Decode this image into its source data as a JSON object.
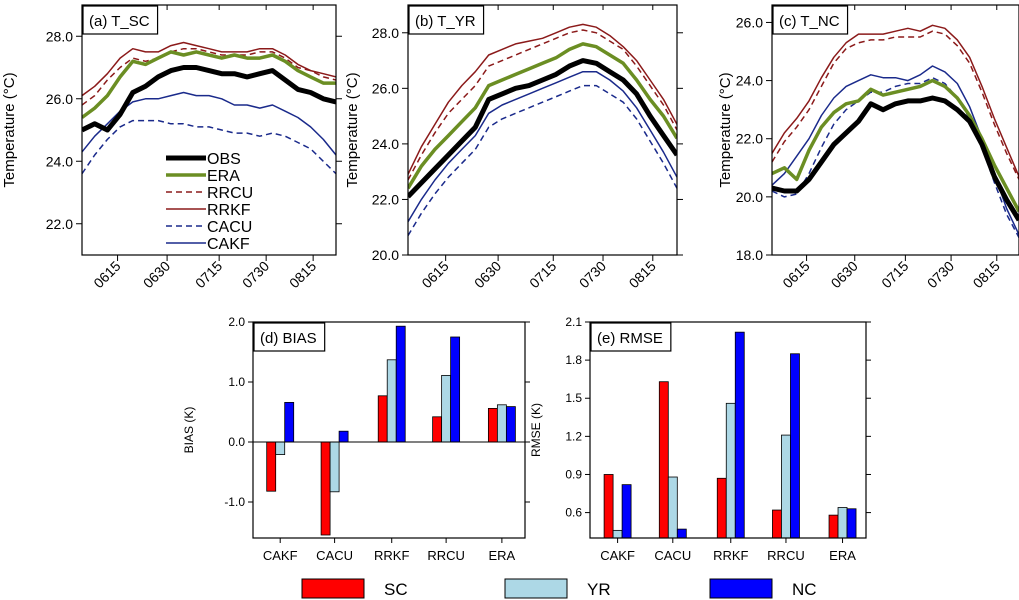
{
  "colors": {
    "OBS": "#000000",
    "ERA": "#6b8e23",
    "RRCU": "#8b1a1a",
    "RRKF": "#8b1a1a",
    "CACU": "#1a2a8b",
    "CAKF": "#1a2a8b",
    "SC": "#ff0000",
    "YR": "#add8e6",
    "NC": "#0000ff"
  },
  "chart_data": [
    {
      "type": "line",
      "title": "(a) T_SC",
      "ylabel": "Temperature (°C)",
      "ylim": [
        21.0,
        29.0
      ],
      "yticks": [
        "22.0",
        "24.0",
        "26.0",
        "28.0"
      ],
      "xticks": [
        "0615",
        "0630",
        "0715",
        "0730",
        "0815"
      ],
      "x_count": 21,
      "legend": {
        "position": "bottom-left",
        "entries": [
          "OBS",
          "ERA",
          "RRCU",
          "RRKF",
          "CACU",
          "CAKF"
        ]
      },
      "series": [
        {
          "name": "OBS",
          "style": "thick",
          "values": [
            25.0,
            25.2,
            25.0,
            25.5,
            26.2,
            26.4,
            26.7,
            26.9,
            27.0,
            27.0,
            26.9,
            26.8,
            26.8,
            26.7,
            26.8,
            26.9,
            26.6,
            26.3,
            26.2,
            26.0,
            25.9
          ]
        },
        {
          "name": "ERA",
          "style": "medium",
          "values": [
            25.4,
            25.7,
            26.1,
            26.7,
            27.2,
            27.1,
            27.3,
            27.5,
            27.4,
            27.5,
            27.4,
            27.3,
            27.4,
            27.3,
            27.3,
            27.4,
            27.2,
            26.9,
            26.7,
            26.5,
            26.5
          ]
        },
        {
          "name": "RRCU",
          "style": "dashed",
          "values": [
            25.8,
            26.1,
            26.6,
            27.0,
            27.3,
            27.2,
            27.3,
            27.5,
            27.6,
            27.6,
            27.5,
            27.4,
            27.4,
            27.4,
            27.5,
            27.5,
            27.3,
            27.0,
            26.9,
            26.7,
            26.6
          ]
        },
        {
          "name": "RRKF",
          "style": "thin",
          "values": [
            26.1,
            26.4,
            26.8,
            27.3,
            27.6,
            27.5,
            27.5,
            27.7,
            27.8,
            27.7,
            27.6,
            27.5,
            27.5,
            27.5,
            27.6,
            27.6,
            27.4,
            27.1,
            26.9,
            26.8,
            26.7
          ]
        },
        {
          "name": "CACU",
          "style": "dashed",
          "values": [
            23.6,
            24.2,
            24.7,
            25.1,
            25.3,
            25.3,
            25.3,
            25.2,
            25.2,
            25.1,
            25.1,
            25.0,
            24.9,
            24.9,
            24.8,
            24.9,
            24.8,
            24.6,
            24.4,
            24.0,
            23.6
          ]
        },
        {
          "name": "CAKF",
          "style": "thin",
          "values": [
            24.3,
            24.8,
            25.2,
            25.6,
            25.9,
            26.0,
            26.0,
            26.1,
            26.2,
            26.1,
            26.1,
            26.0,
            25.8,
            25.8,
            25.7,
            25.8,
            25.6,
            25.4,
            25.1,
            24.7,
            24.2
          ]
        }
      ]
    },
    {
      "type": "line",
      "title": "(b) T_YR",
      "ylabel": "Temperature (°C)",
      "ylim": [
        20.0,
        29.0
      ],
      "yticks": [
        "20.0",
        "22.0",
        "24.0",
        "26.0",
        "28.0"
      ],
      "xticks": [
        "0615",
        "0630",
        "0715",
        "0730",
        "0815"
      ],
      "x_count": 21,
      "series": [
        {
          "name": "OBS",
          "style": "thick",
          "values": [
            22.1,
            22.6,
            23.1,
            23.6,
            24.1,
            24.6,
            25.6,
            25.8,
            26.0,
            26.1,
            26.3,
            26.5,
            26.8,
            27.0,
            26.9,
            26.6,
            26.3,
            25.8,
            25.0,
            24.3,
            23.6
          ]
        },
        {
          "name": "ERA",
          "style": "medium",
          "values": [
            22.4,
            23.2,
            23.8,
            24.3,
            24.8,
            25.3,
            26.1,
            26.3,
            26.5,
            26.7,
            26.9,
            27.1,
            27.4,
            27.6,
            27.5,
            27.2,
            26.9,
            26.3,
            25.6,
            25.0,
            24.2
          ]
        },
        {
          "name": "RRCU",
          "style": "dashed",
          "values": [
            22.7,
            23.6,
            24.4,
            25.1,
            25.6,
            26.1,
            26.8,
            27.0,
            27.2,
            27.4,
            27.6,
            27.8,
            28.0,
            28.1,
            28.0,
            27.7,
            27.4,
            26.8,
            26.1,
            25.4,
            24.5
          ]
        },
        {
          "name": "RRKF",
          "style": "thin",
          "values": [
            22.9,
            23.9,
            24.7,
            25.5,
            26.1,
            26.6,
            27.2,
            27.4,
            27.6,
            27.7,
            27.8,
            28.0,
            28.2,
            28.3,
            28.2,
            27.9,
            27.5,
            27.0,
            26.3,
            25.6,
            24.7
          ]
        },
        {
          "name": "CACU",
          "style": "dashed",
          "values": [
            20.7,
            21.5,
            22.2,
            22.8,
            23.3,
            23.8,
            24.6,
            24.9,
            25.1,
            25.3,
            25.5,
            25.7,
            25.9,
            26.1,
            26.1,
            25.8,
            25.5,
            24.9,
            24.1,
            23.3,
            22.4
          ]
        },
        {
          "name": "CAKF",
          "style": "thin",
          "values": [
            21.2,
            22.0,
            22.7,
            23.3,
            23.8,
            24.3,
            25.1,
            25.4,
            25.6,
            25.8,
            26.0,
            26.2,
            26.4,
            26.6,
            26.6,
            26.3,
            25.9,
            25.3,
            24.5,
            23.7,
            22.8
          ]
        }
      ]
    },
    {
      "type": "line",
      "title": "(c) T_NC",
      "ylabel": "Temperature (°C)",
      "ylim": [
        18.0,
        26.6
      ],
      "yticks": [
        "18.0",
        "20.0",
        "22.0",
        "24.0",
        "26.0"
      ],
      "xticks": [
        "0615",
        "0630",
        "0715",
        "0730",
        "0815"
      ],
      "x_count": 21,
      "series": [
        {
          "name": "OBS",
          "style": "thick",
          "values": [
            20.3,
            20.2,
            20.2,
            20.6,
            21.2,
            21.8,
            22.2,
            22.6,
            23.2,
            23.0,
            23.2,
            23.3,
            23.3,
            23.4,
            23.3,
            23.0,
            22.6,
            21.8,
            20.7,
            19.9,
            19.2
          ]
        },
        {
          "name": "ERA",
          "style": "medium",
          "values": [
            20.8,
            21.0,
            20.6,
            21.6,
            22.4,
            22.9,
            23.2,
            23.3,
            23.7,
            23.5,
            23.6,
            23.7,
            23.8,
            24.0,
            23.8,
            23.4,
            22.8,
            22.0,
            21.1,
            20.3,
            19.5
          ]
        },
        {
          "name": "RRCU",
          "style": "dashed",
          "values": [
            21.2,
            21.9,
            22.4,
            23.0,
            23.8,
            24.6,
            25.1,
            25.3,
            25.4,
            25.4,
            25.5,
            25.5,
            25.5,
            25.7,
            25.6,
            25.2,
            24.6,
            23.6,
            22.5,
            21.5,
            20.6
          ]
        },
        {
          "name": "RRKF",
          "style": "thin",
          "values": [
            21.5,
            22.2,
            22.7,
            23.3,
            24.1,
            24.8,
            25.3,
            25.6,
            25.6,
            25.6,
            25.7,
            25.8,
            25.7,
            25.9,
            25.8,
            25.4,
            24.8,
            23.8,
            22.7,
            21.7,
            20.7
          ]
        },
        {
          "name": "CACU",
          "style": "dashed",
          "values": [
            20.2,
            20.0,
            20.1,
            20.8,
            21.7,
            22.5,
            23.0,
            23.3,
            23.6,
            23.6,
            23.8,
            23.9,
            23.9,
            24.1,
            23.9,
            23.4,
            22.7,
            21.7,
            20.5,
            19.4,
            18.6
          ]
        },
        {
          "name": "CAKF",
          "style": "thin",
          "values": [
            20.4,
            20.8,
            21.4,
            22.0,
            22.8,
            23.4,
            23.8,
            24.0,
            24.2,
            24.1,
            24.1,
            24.0,
            24.2,
            24.5,
            24.3,
            23.9,
            23.1,
            22.0,
            20.8,
            19.6,
            18.7
          ]
        }
      ]
    },
    {
      "type": "bar",
      "title": "(d) BIAS",
      "ylabel": "BIAS (K)",
      "ylim": [
        -1.6,
        2.0
      ],
      "yticks": [
        "-1.0",
        "0.0",
        "1.0",
        "2.0"
      ],
      "categories": [
        "CAKF",
        "CACU",
        "RRKF",
        "RRCU",
        "ERA"
      ],
      "series": [
        {
          "name": "SC",
          "values": [
            -0.82,
            -1.55,
            0.77,
            0.42,
            0.56
          ]
        },
        {
          "name": "YR",
          "values": [
            -0.21,
            -0.83,
            1.37,
            1.11,
            0.62
          ]
        },
        {
          "name": "NC",
          "values": [
            0.66,
            0.18,
            1.93,
            1.75,
            0.59
          ]
        }
      ]
    },
    {
      "type": "bar",
      "title": "(e) RMSE",
      "ylabel": "RMSE (K)",
      "ylim": [
        0.4,
        2.1
      ],
      "yticks": [
        "0.6",
        "0.9",
        "1.2",
        "1.5",
        "1.8",
        "2.1"
      ],
      "categories": [
        "CAKF",
        "CACU",
        "RRKF",
        "RRCU",
        "ERA"
      ],
      "series": [
        {
          "name": "SC",
          "values": [
            0.9,
            1.63,
            0.87,
            0.62,
            0.58
          ]
        },
        {
          "name": "YR",
          "values": [
            0.46,
            0.88,
            1.46,
            1.21,
            0.64
          ]
        },
        {
          "name": "NC",
          "values": [
            0.82,
            0.47,
            2.02,
            1.85,
            0.63
          ]
        }
      ]
    }
  ],
  "bar_legend": {
    "position": "bottom",
    "entries": [
      "SC",
      "YR",
      "NC"
    ]
  }
}
